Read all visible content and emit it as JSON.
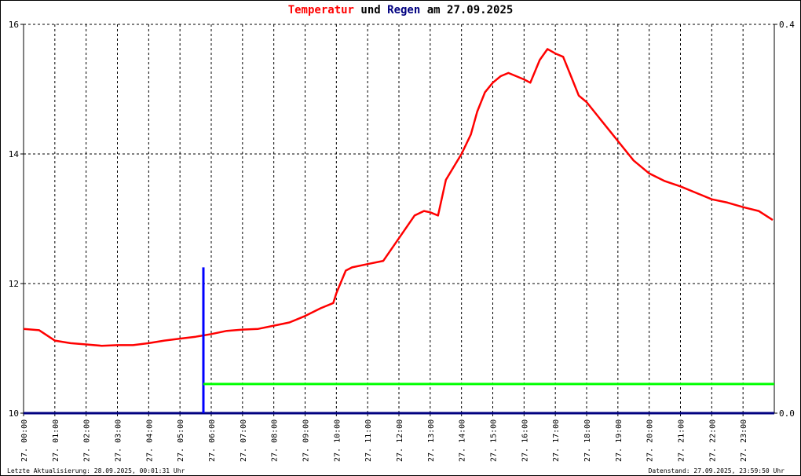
{
  "title": {
    "part1": "Temperatur",
    "part2": " und ",
    "part3": "Regen",
    "part4": " am 27.09.2025",
    "color_temp": "#ff0000",
    "color_rain": "#000080"
  },
  "footer": {
    "left": "Letzte Aktualisierung: 28.09.2025, 00:01:31 Uhr",
    "right": "Datenstand: 27.09.2025, 23:59:50 Uhr"
  },
  "chart_data": {
    "type": "line",
    "title": "Temperatur und Regen am 27.09.2025",
    "x_unit": "hour of day",
    "xlim": [
      0,
      24
    ],
    "ylim_left": [
      10,
      16
    ],
    "ylim_right": [
      0.0,
      0.4
    ],
    "y_ticks_left": [
      "10",
      "12",
      "14",
      "16"
    ],
    "y_ticks_right": [
      "0.0",
      "0.4"
    ],
    "x_tick_labels": [
      "27. 00:00",
      "27. 01:00",
      "27. 02:00",
      "27. 03:00",
      "27. 04:00",
      "27. 05:00",
      "27. 06:00",
      "27. 07:00",
      "27. 08:00",
      "27. 09:00",
      "27. 10:00",
      "27. 11:00",
      "27. 12:00",
      "27. 13:00",
      "27. 14:00",
      "27. 15:00",
      "27. 16:00",
      "27. 17:00",
      "27. 18:00",
      "27. 19:00",
      "27. 20:00",
      "27. 21:00",
      "27. 22:00",
      "27. 23:00"
    ],
    "grid": true,
    "series": [
      {
        "key": "temperature",
        "axis": "left",
        "color": "#ff0000",
        "x": [
          0,
          0.5,
          1,
          1.5,
          2,
          2.5,
          3,
          3.5,
          4,
          4.5,
          5,
          5.5,
          6,
          6.5,
          7,
          7.5,
          8,
          8.5,
          9,
          9.5,
          9.9,
          10,
          10.3,
          10.5,
          11,
          11.5,
          12,
          12.5,
          12.8,
          13,
          13.25,
          13.5,
          14,
          14.3,
          14.5,
          14.75,
          15,
          15.25,
          15.5,
          15.75,
          16,
          16.2,
          16.5,
          16.75,
          17,
          17.25,
          17.5,
          17.75,
          18,
          18.5,
          19,
          19.5,
          20,
          20.5,
          21,
          21.5,
          22,
          22.5,
          23,
          23.5,
          23.95
        ],
        "y": [
          11.3,
          11.28,
          11.12,
          11.08,
          11.06,
          11.04,
          11.05,
          11.05,
          11.08,
          11.12,
          11.15,
          11.18,
          11.22,
          11.27,
          11.29,
          11.3,
          11.35,
          11.4,
          11.5,
          11.62,
          11.7,
          11.85,
          12.2,
          12.25,
          12.3,
          12.35,
          12.7,
          13.05,
          13.12,
          13.1,
          13.05,
          13.6,
          14.0,
          14.3,
          14.65,
          14.95,
          15.1,
          15.2,
          15.25,
          15.2,
          15.15,
          15.1,
          15.45,
          15.62,
          15.55,
          15.5,
          15.2,
          14.9,
          14.8,
          14.5,
          14.2,
          13.9,
          13.7,
          13.58,
          13.5,
          13.4,
          13.3,
          13.25,
          13.18,
          13.12,
          12.98
        ]
      },
      {
        "key": "rain_cumulative",
        "axis": "right",
        "color": "#000080",
        "x": [
          0,
          24
        ],
        "y": [
          0.0,
          0.0
        ]
      },
      {
        "key": "rain_event",
        "axis": "right",
        "color": "#0000ff",
        "x": [
          5.75,
          5.75
        ],
        "y": [
          0.0,
          0.15
        ]
      },
      {
        "key": "reference_level",
        "axis": "right",
        "color": "#00ff00",
        "x": [
          5.75,
          24
        ],
        "y": [
          0.03,
          0.03
        ]
      }
    ]
  }
}
